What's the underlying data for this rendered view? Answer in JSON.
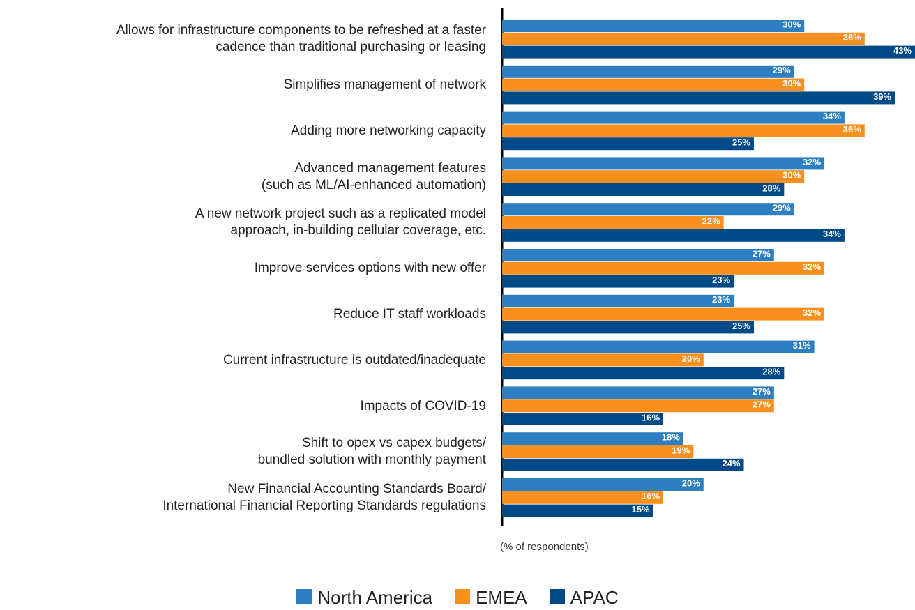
{
  "chart_data": {
    "type": "bar",
    "orientation": "horizontal",
    "categories": [
      "Allows for infrastructure components to be refreshed at a faster\ncadence than traditional purchasing or leasing",
      "Simplifies management of network",
      "Adding more networking capacity",
      "Advanced management features\n(such as ML/AI-enhanced automation)",
      "A new network project such as a replicated model\napproach, in-building cellular coverage, etc.",
      "Improve services options with new offer",
      "Reduce IT staff workloads",
      "Current infrastructure is outdated/inadequate",
      "Impacts of COVID-19",
      "Shift to opex vs capex budgets/\nbundled solution with monthly payment",
      "New Financial Accounting Standards Board/\nInternational Financial Reporting Standards regulations"
    ],
    "series": [
      {
        "name": "North America",
        "color": "#2e7fc1",
        "values": [
          30,
          29,
          34,
          32,
          29,
          27,
          23,
          31,
          27,
          18,
          20
        ],
        "value_labels": [
          "30%",
          "29%",
          "34%",
          "32%",
          "29%",
          "27%",
          "23%",
          "31%",
          "27%",
          "18%",
          "20%"
        ]
      },
      {
        "name": "EMEA",
        "color": "#f7901e",
        "values": [
          36,
          30,
          36,
          30,
          22,
          32,
          32,
          20,
          27,
          19,
          16
        ],
        "value_labels": [
          "36%",
          "30%",
          "36%",
          "30%",
          "22%",
          "32%",
          "32%",
          "20%",
          "27%",
          "19%",
          "16%"
        ]
      },
      {
        "name": "APAC",
        "color": "#004a87",
        "values": [
          43,
          39,
          25,
          28,
          34,
          23,
          25,
          28,
          16,
          24,
          15
        ],
        "value_labels": [
          "43%",
          "39%",
          "25%",
          "28%",
          "34%",
          "23%",
          "25%",
          "28%",
          "16%",
          "24%",
          "15%"
        ]
      }
    ],
    "xlim": [
      0,
      41
    ],
    "axis_label": "(% of respondents)"
  }
}
